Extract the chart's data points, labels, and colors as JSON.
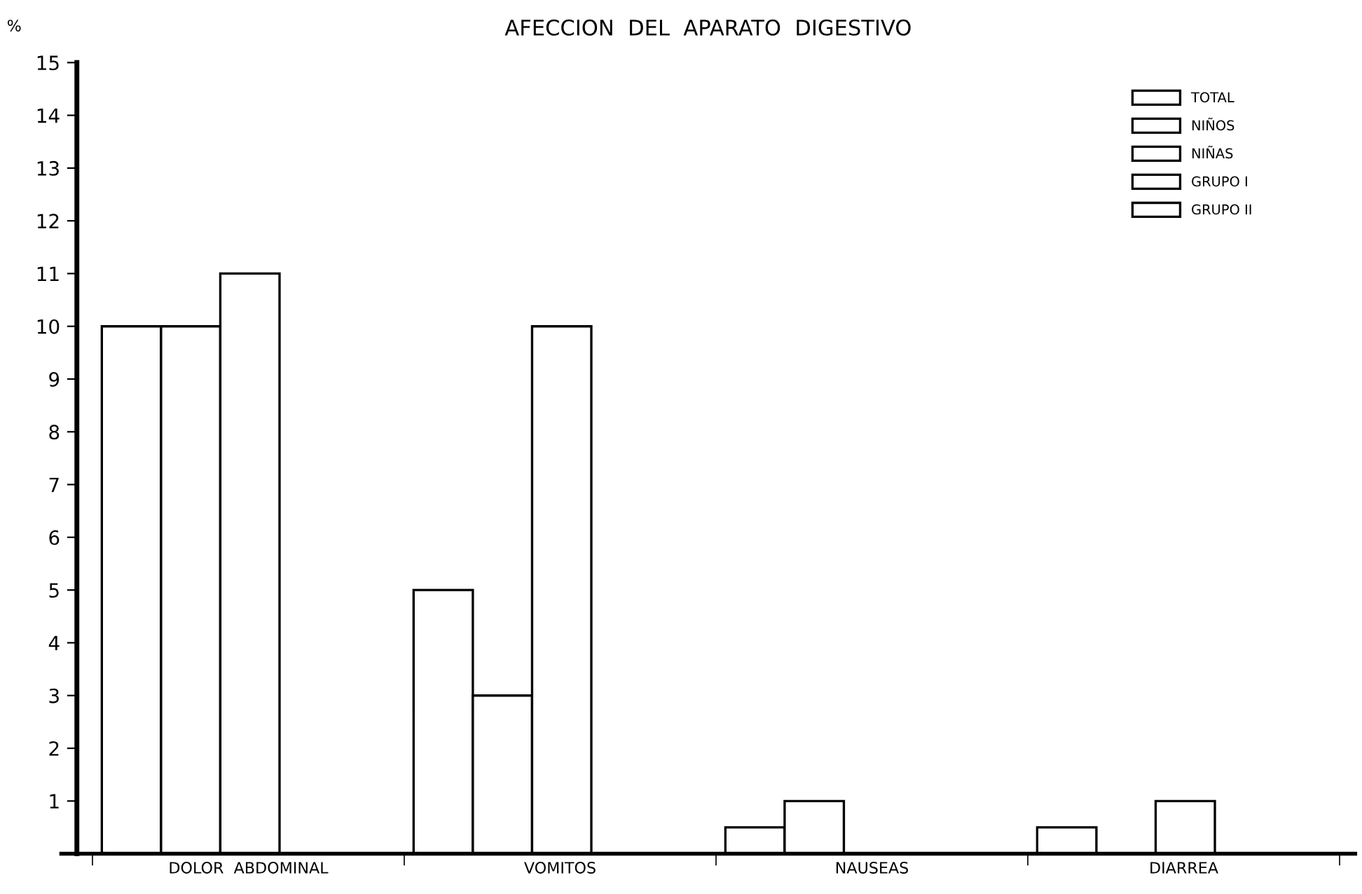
{
  "chart_data": {
    "type": "bar",
    "title": "AFECCION  DEL  APARATO  DIGESTIVO",
    "ylabel": "%",
    "categories": [
      "DOLOR  ABDOMINAL",
      "VOMITOS",
      "NAUSEAS",
      "DIARREA"
    ],
    "series": [
      {
        "name": "TOTAL",
        "color": "#ffffff",
        "values": [
          10,
          5,
          0.5,
          0.5
        ]
      },
      {
        "name": "NIÑOS",
        "color": "#ffffff",
        "values": [
          10,
          3,
          1,
          null
        ]
      },
      {
        "name": "NIÑAS",
        "color": "#ffffff",
        "values": [
          11,
          10,
          null,
          1
        ]
      },
      {
        "name": "GRUPO I",
        "color": "#ffffff",
        "values": [
          null,
          null,
          null,
          null
        ]
      },
      {
        "name": "GRUPO II",
        "color": "#ffffff",
        "values": [
          null,
          null,
          null,
          null
        ]
      }
    ],
    "ylim": [
      0,
      15
    ],
    "yticks": [
      1,
      2,
      3,
      4,
      5,
      6,
      7,
      8,
      9,
      10,
      11,
      12,
      13,
      14,
      15
    ],
    "grid": false,
    "legend": "top right"
  }
}
